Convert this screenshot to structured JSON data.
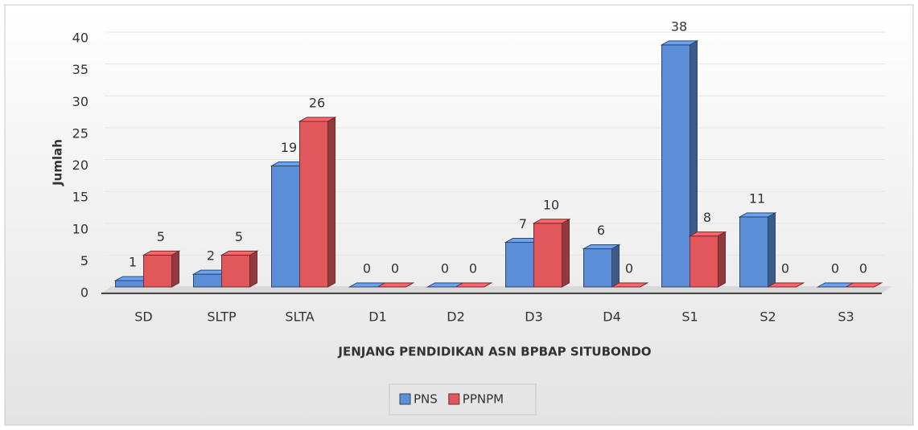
{
  "chart_data": {
    "type": "bar3d",
    "categories": [
      "SD",
      "SLTP",
      "SLTA",
      "D1",
      "D2",
      "D3",
      "D4",
      "S1",
      "S2",
      "S3"
    ],
    "series": [
      {
        "name": "PNS",
        "color": "#5b8ed6",
        "values": [
          1,
          2,
          19,
          0,
          0,
          7,
          6,
          38,
          11,
          0
        ]
      },
      {
        "name": "PPNPM",
        "color": "#e0585b",
        "values": [
          5,
          5,
          26,
          0,
          0,
          10,
          0,
          8,
          0,
          0
        ]
      }
    ],
    "x_label": "JENJANG PENDIDIKAN ASN BPBAP SITUBONDO",
    "y_label": "Jumlah",
    "ylim": [
      0,
      40
    ],
    "yticks": [
      0,
      5,
      10,
      15,
      20,
      25,
      30,
      35,
      40
    ],
    "legend": "bottom"
  }
}
